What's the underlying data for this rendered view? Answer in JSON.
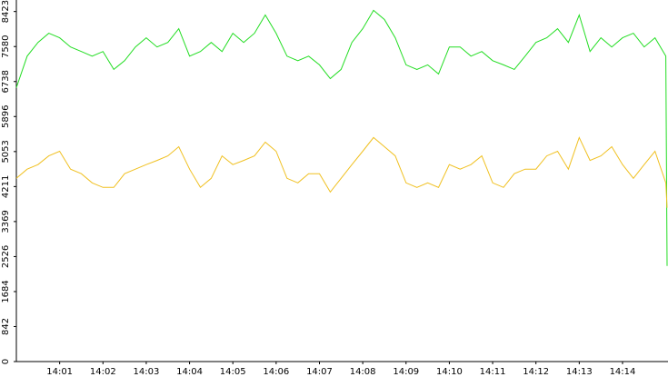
{
  "chart_data": {
    "type": "line",
    "x": [
      0,
      0.25,
      0.5,
      0.75,
      1,
      1.25,
      1.5,
      1.75,
      2,
      2.25,
      2.5,
      2.75,
      3,
      3.25,
      3.5,
      3.75,
      4,
      4.25,
      4.5,
      4.75,
      5,
      5.25,
      5.5,
      5.75,
      6,
      6.25,
      6.5,
      6.75,
      7,
      7.25,
      7.5,
      7.75,
      8,
      8.25,
      8.5,
      8.75,
      9,
      9.25,
      9.5,
      9.75,
      10,
      10.25,
      10.5,
      10.75,
      11,
      11.25,
      11.5,
      11.75,
      12,
      12.25,
      12.5,
      12.75,
      13,
      13.25,
      13.5,
      13.75,
      14,
      14.25,
      14.5,
      14.75,
      15,
      15.03
    ],
    "series": [
      {
        "color": "#22dd22",
        "values": [
          6590,
          7350,
          7680,
          7900,
          7790,
          7570,
          7460,
          7350,
          7460,
          7030,
          7240,
          7570,
          7790,
          7570,
          7680,
          8010,
          7350,
          7460,
          7680,
          7460,
          7900,
          7680,
          7900,
          8340,
          7900,
          7350,
          7240,
          7350,
          7140,
          6810,
          7030,
          7680,
          8010,
          8450,
          8230,
          7790,
          7140,
          7030,
          7140,
          6920,
          7570,
          7570,
          7350,
          7460,
          7240,
          7140,
          7030,
          7350,
          7680,
          7790,
          8010,
          7680,
          8340,
          7460,
          7790,
          7570,
          7790,
          7900,
          7570,
          7790,
          7350,
          2300
        ]
      },
      {
        "color": "#f0c020",
        "values": [
          4410,
          4630,
          4740,
          4950,
          5060,
          4630,
          4520,
          4300,
          4190,
          4190,
          4520,
          4630,
          4740,
          4840,
          4950,
          5170,
          4630,
          4190,
          4410,
          4950,
          4740,
          4840,
          4950,
          5280,
          5060,
          4410,
          4300,
          4520,
          4520,
          4080,
          4410,
          4740,
          5060,
          5390,
          5170,
          4950,
          4300,
          4190,
          4300,
          4190,
          4740,
          4630,
          4740,
          4950,
          4300,
          4190,
          4520,
          4630,
          4630,
          4950,
          5060,
          4630,
          5390,
          4840,
          4950,
          5170,
          4740,
          4410,
          4740,
          5060,
          4300,
          3700
        ]
      }
    ],
    "xlim": [
      0,
      15.05
    ],
    "xticks": [
      {
        "value": 1,
        "label": "14:01"
      },
      {
        "value": 2,
        "label": "14:02"
      },
      {
        "value": 3,
        "label": "14:03"
      },
      {
        "value": 4,
        "label": "14:04"
      },
      {
        "value": 5,
        "label": "14:05"
      },
      {
        "value": 6,
        "label": "14:06"
      },
      {
        "value": 7,
        "label": "14:07"
      },
      {
        "value": 8,
        "label": "14:08"
      },
      {
        "value": 9,
        "label": "14:09"
      },
      {
        "value": 10,
        "label": "14:10"
      },
      {
        "value": 11,
        "label": "14:11"
      },
      {
        "value": 12,
        "label": "14:12"
      },
      {
        "value": 13,
        "label": "14:13"
      },
      {
        "value": 14,
        "label": "14:14"
      }
    ],
    "ylim": [
      0,
      8700
    ],
    "yticks": [
      0,
      842,
      1684,
      2526,
      3369,
      4211,
      5053,
      5896,
      6738,
      7580,
      8423
    ]
  }
}
